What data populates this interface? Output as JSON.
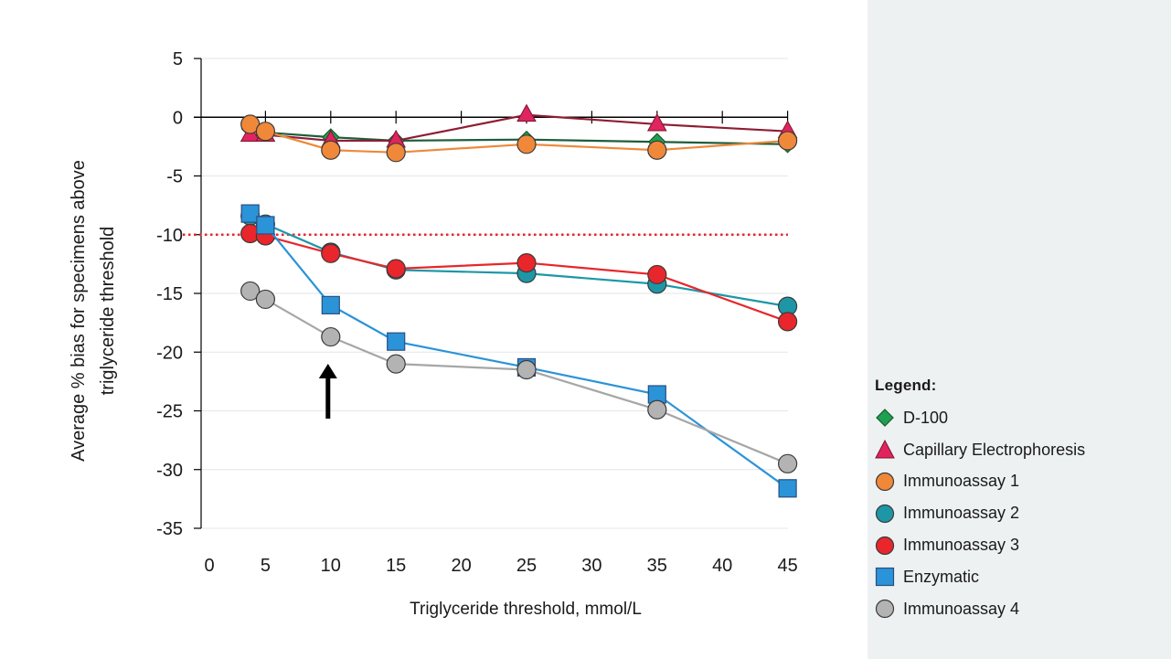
{
  "chart_data": {
    "type": "line",
    "xlabel": "Triglyceride threshold, mmol/L",
    "ylabel_lines": [
      "Average % bias for specimens above",
      "triglyceride threshold"
    ],
    "x_tick_labels": [
      "0",
      "5",
      "10",
      "15",
      "20",
      "25",
      "30",
      "35",
      "40",
      "45"
    ],
    "y_tick_labels": [
      "5",
      "0",
      "-5",
      "-10",
      "-15",
      "-20",
      "-25",
      "-30",
      "-35"
    ],
    "ylim": [
      -35,
      5
    ],
    "reference_line": {
      "y": -10,
      "color": "#e8262b",
      "style": "dotted"
    },
    "annotation": {
      "type": "arrow",
      "points_to_x": "10"
    },
    "legend": {
      "title": "Legend:",
      "position": "right"
    },
    "series": [
      {
        "name": "D-100",
        "marker": "diamond",
        "color": "#1fa050",
        "line_color": "#1d5e3a",
        "x": [
          "2.5",
          "5",
          "10",
          "15",
          "25",
          "35",
          "45"
        ],
        "values": [
          -1.0,
          -1.3,
          -1.7,
          -2.0,
          -1.9,
          -2.1,
          -2.3
        ]
      },
      {
        "name": "Capillary Electrophoresis",
        "marker": "triangle",
        "color": "#e0245e",
        "line_color": "#8e1d34",
        "x": [
          "2.5",
          "5",
          "10",
          "15",
          "25",
          "35",
          "45"
        ],
        "values": [
          -1.5,
          -1.5,
          -2.0,
          -2.0,
          0.2,
          -0.6,
          -1.2
        ]
      },
      {
        "name": "Immunoassay 1",
        "marker": "circle",
        "color": "#f0883a",
        "line_color": "#ec8a3c",
        "x": [
          "2.5",
          "5",
          "10",
          "15",
          "25",
          "35",
          "45"
        ],
        "values": [
          -0.6,
          -1.2,
          -2.8,
          -3.0,
          -2.3,
          -2.8,
          -2.0
        ]
      },
      {
        "name": "Immunoassay 2",
        "marker": "circle",
        "color": "#1d97a6",
        "line_color": "#1d97a6",
        "x": [
          "2.5",
          "5",
          "10",
          "15",
          "25",
          "35",
          "45"
        ],
        "values": [
          -8.4,
          -9.1,
          -11.5,
          -13.0,
          -13.3,
          -14.2,
          -16.1
        ]
      },
      {
        "name": "Immunoassay 3",
        "marker": "circle",
        "color": "#e8262b",
        "line_color": "#e8262b",
        "x": [
          "2.5",
          "5",
          "10",
          "15",
          "25",
          "35",
          "45"
        ],
        "values": [
          -9.9,
          -10.1,
          -11.6,
          -12.9,
          -12.4,
          -13.4,
          -17.4
        ]
      },
      {
        "name": "Enzymatic",
        "marker": "square",
        "color": "#2b93d8",
        "line_color": "#2b93d8",
        "x": [
          "2.5",
          "5",
          "10",
          "15",
          "25",
          "35",
          "45"
        ],
        "values": [
          -8.2,
          -9.2,
          -16.0,
          -19.1,
          -21.3,
          -23.6,
          -31.6
        ]
      },
      {
        "name": "Immunoassay 4",
        "marker": "circle",
        "color": "#b3b3b3",
        "line_color": "#a6a6a6",
        "x": [
          "2.5",
          "5",
          "10",
          "15",
          "25",
          "35",
          "45"
        ],
        "values": [
          -14.8,
          -15.5,
          -18.7,
          -21.0,
          -21.5,
          -24.9,
          -29.5
        ]
      }
    ]
  }
}
